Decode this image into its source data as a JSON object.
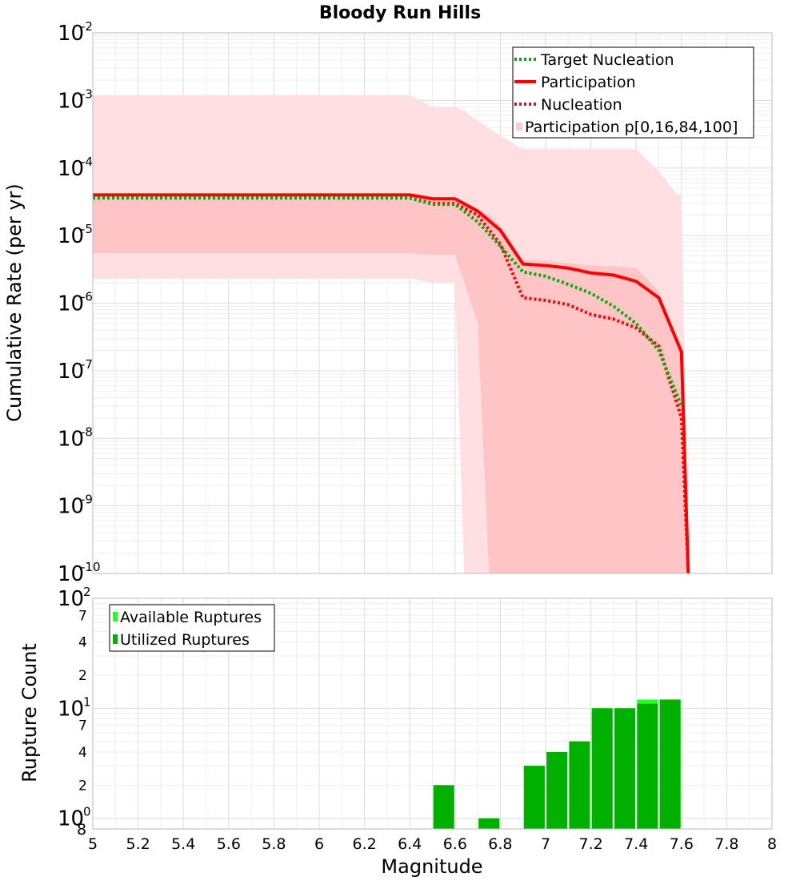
{
  "chart_data": [
    {
      "type": "line",
      "title": "Bloody Run Hills",
      "ylabel": "Cumulative Rate (per yr)",
      "xlim": [
        5,
        8
      ],
      "ylim": [
        1e-10,
        0.01
      ],
      "yscale": "log",
      "grid": true,
      "legend_position": "top-right",
      "y_tick_exponents": [
        -10,
        -9,
        -8,
        -7,
        -6,
        -5,
        -4,
        -3,
        -2
      ],
      "y_tick_base": "10",
      "legend": [
        {
          "label": "Target Nucleation",
          "style": "dotted",
          "color": "#00aa00"
        },
        {
          "label": "Participation",
          "style": "solid",
          "color": "#ff0000"
        },
        {
          "label": "Nucleation",
          "style": "dotted",
          "color": "#ff0000"
        },
        {
          "label": "Participation p[0,16,84,100]",
          "style": "fill",
          "color": "#ffcccc"
        }
      ],
      "series": [
        {
          "name": "Target Nucleation",
          "style": "dotted",
          "color": "#00aa00",
          "x": [
            5.0,
            5.5,
            6.0,
            6.3,
            6.4,
            6.5,
            6.6,
            6.7,
            6.8,
            6.9,
            7.0,
            7.1,
            7.2,
            7.3,
            7.4,
            7.5,
            7.6
          ],
          "y": [
            3.6e-05,
            3.6e-05,
            3.6e-05,
            3.6e-05,
            3.6e-05,
            2.9e-05,
            2.9e-05,
            1.6e-05,
            7e-06,
            2.9e-06,
            2.5e-06,
            1.9e-06,
            1.4e-06,
            9e-07,
            5e-07,
            2e-07,
            3e-08
          ]
        },
        {
          "name": "Participation",
          "style": "solid",
          "color": "#ff0000",
          "x": [
            5.0,
            5.5,
            6.0,
            6.3,
            6.4,
            6.5,
            6.6,
            6.7,
            6.8,
            6.9,
            7.0,
            7.1,
            7.2,
            7.3,
            7.4,
            7.5,
            7.6,
            7.63
          ],
          "y": [
            4e-05,
            4e-05,
            4e-05,
            4e-05,
            4e-05,
            3.5e-05,
            3.5e-05,
            2.3e-05,
            1.2e-05,
            3.8e-06,
            3.6e-06,
            3.3e-06,
            2.8e-06,
            2.6e-06,
            2.1e-06,
            1.2e-06,
            1.9e-07,
            1e-10
          ]
        },
        {
          "name": "Nucleation",
          "style": "dotted",
          "color": "#ff0000",
          "x": [
            5.0,
            5.5,
            6.0,
            6.3,
            6.4,
            6.5,
            6.6,
            6.7,
            6.8,
            6.9,
            7.0,
            7.1,
            7.2,
            7.3,
            7.4,
            7.5,
            7.6,
            7.63
          ],
          "y": [
            3.6e-05,
            3.6e-05,
            3.6e-05,
            3.6e-05,
            3.6e-05,
            3e-05,
            3e-05,
            2e-05,
            7.5e-06,
            1.2e-06,
            1.1e-06,
            9.5e-07,
            6.8e-07,
            5.8e-07,
            4.3e-07,
            2.3e-07,
            2e-08,
            1e-10
          ]
        }
      ],
      "bands": [
        {
          "name": "p0-p100",
          "color": "#ffdfe1",
          "x": [
            5.0,
            6.4,
            6.5,
            6.6,
            6.64,
            6.7,
            6.8,
            6.9,
            7.0,
            7.1,
            7.2,
            7.3,
            7.4,
            7.5,
            7.58,
            7.6,
            7.63
          ],
          "upper": [
            0.0012,
            0.0012,
            0.0008,
            0.0008,
            0.0007,
            0.0005,
            0.0003,
            0.00019,
            0.00019,
            0.00019,
            0.00019,
            0.00019,
            0.00019,
            9e-05,
            4e-05,
            4e-05,
            1e-10
          ],
          "lower": [
            2.3e-06,
            2.3e-06,
            2e-06,
            2e-06,
            1e-10,
            1e-10,
            1e-10,
            1e-10,
            1e-10,
            1e-10,
            1e-10,
            1e-10,
            1e-10,
            1e-10,
            1e-10,
            1e-10,
            1e-10
          ]
        },
        {
          "name": "p16-p84",
          "color": "#ffc4c6",
          "x": [
            5.0,
            6.4,
            6.5,
            6.6,
            6.7,
            6.75,
            6.8,
            6.9,
            7.0,
            7.1,
            7.2,
            7.3,
            7.4,
            7.5,
            7.6,
            7.62
          ],
          "upper": [
            4.2e-05,
            4.2e-05,
            3.8e-05,
            3.6e-05,
            2.5e-05,
            2e-05,
            1.4e-05,
            4.3e-06,
            4.2e-06,
            3.9e-06,
            3.6e-06,
            3.5e-06,
            3.3e-06,
            1.5e-06,
            2e-07,
            1e-10
          ],
          "lower": [
            5.5e-06,
            5.5e-06,
            5.2e-06,
            5.2e-06,
            5e-07,
            1e-10,
            1e-10,
            1e-10,
            1e-10,
            1e-10,
            1e-10,
            1e-10,
            1e-10,
            1e-10,
            1e-10,
            1e-10
          ]
        }
      ]
    },
    {
      "type": "bar",
      "xlabel": "Magnitude",
      "ylabel": "Rupture Count",
      "xlim": [
        5,
        8
      ],
      "ylim": [
        0.8,
        100
      ],
      "yscale": "log",
      "grid": true,
      "legend_position": "top-left",
      "x_ticks": [
        "5",
        "5.2",
        "5.4",
        "5.6",
        "5.8",
        "6",
        "6.2",
        "6.4",
        "6.6",
        "6.8",
        "7",
        "7.2",
        "7.4",
        "7.6",
        "7.8",
        "8"
      ],
      "y_ticks": [
        {
          "value": 0.8,
          "label": "8",
          "exp": ""
        },
        {
          "value": 1,
          "label": "10",
          "exp": "0"
        },
        {
          "value": 2,
          "label": "2",
          "exp": ""
        },
        {
          "value": 4,
          "label": "4",
          "exp": ""
        },
        {
          "value": 7,
          "label": "7",
          "exp": ""
        },
        {
          "value": 10,
          "label": "10",
          "exp": "1"
        },
        {
          "value": 20,
          "label": "2",
          "exp": ""
        },
        {
          "value": 40,
          "label": "4",
          "exp": ""
        },
        {
          "value": 70,
          "label": "7",
          "exp": ""
        },
        {
          "value": 100,
          "label": "10",
          "exp": "2"
        }
      ],
      "legend": [
        {
          "label": "Available Ruptures",
          "color": "#22ff22"
        },
        {
          "label": "Utilized Ruptures",
          "color": "#00b000"
        }
      ],
      "categories": [
        6.55,
        6.75,
        6.95,
        7.05,
        7.15,
        7.25,
        7.35,
        7.45,
        7.55
      ],
      "series": [
        {
          "name": "Available Ruptures",
          "color": "#22ff22",
          "values": [
            2,
            1,
            3,
            4,
            5,
            10,
            10,
            12,
            12
          ]
        },
        {
          "name": "Utilized Ruptures",
          "color": "#00b000",
          "values": [
            2,
            1,
            3,
            4,
            5,
            10,
            10,
            11,
            12
          ]
        }
      ]
    }
  ]
}
